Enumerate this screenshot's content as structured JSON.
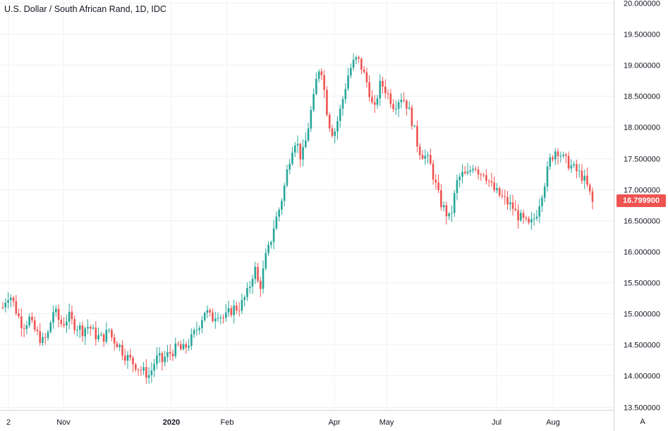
{
  "chart_data": {
    "type": "candlestick",
    "title": "U.S. Dollar / South African Rand, 1D, IDC",
    "ylim": [
      13.45,
      20.0
    ],
    "y_ticks": [
      "13.500000",
      "14.000000",
      "14.500000",
      "15.000000",
      "15.500000",
      "16.000000",
      "16.500000",
      "17.000000",
      "17.500000",
      "18.000000",
      "18.500000",
      "19.000000",
      "19.500000",
      "20.000000"
    ],
    "y_tick_values": [
      13.5,
      14,
      14.5,
      15,
      15.5,
      16,
      16.5,
      17,
      17.5,
      18,
      18.5,
      19,
      19.5,
      20
    ],
    "x_ticks": [
      {
        "label": "2",
        "bold": false
      },
      {
        "label": "Nov",
        "bold": false
      },
      {
        "label": "2020",
        "bold": true
      },
      {
        "label": "Feb",
        "bold": false
      },
      {
        "label": "Apr",
        "bold": false
      },
      {
        "label": "May",
        "bold": false
      },
      {
        "label": "Jul",
        "bold": false
      },
      {
        "label": "Aug",
        "bold": false
      }
    ],
    "close_path": [
      15.1,
      15.25,
      15.32,
      15.2,
      15.05,
      14.92,
      14.8,
      14.85,
      14.92,
      14.78,
      14.7,
      14.62,
      14.55,
      14.6,
      14.72,
      15.05,
      15.0,
      14.88,
      14.82,
      14.9,
      14.95,
      14.85,
      14.8,
      14.78,
      14.72,
      14.78,
      14.8,
      14.72,
      14.65,
      14.62,
      14.6,
      14.65,
      14.75,
      14.6,
      14.55,
      14.5,
      14.4,
      14.32,
      14.28,
      14.22,
      14.18,
      14.12,
      14.08,
      14.05,
      14.0,
      14.1,
      14.25,
      14.3,
      14.22,
      14.3,
      14.35,
      14.38,
      14.42,
      14.48,
      14.4,
      14.45,
      14.52,
      14.6,
      14.7,
      14.8,
      14.92,
      15.05,
      15.0,
      14.9,
      14.98,
      15.02,
      14.95,
      14.92,
      15.0,
      15.05,
      15.1,
      15.08,
      15.15,
      15.25,
      15.35,
      15.55,
      15.75,
      15.5,
      15.45,
      15.85,
      16.0,
      16.2,
      16.45,
      16.6,
      16.8,
      17.05,
      17.35,
      17.6,
      17.8,
      17.7,
      17.5,
      17.65,
      17.95,
      18.25,
      18.5,
      18.9,
      19.0,
      18.6,
      18.2,
      17.95,
      17.9,
      18.1,
      18.3,
      18.55,
      18.8,
      18.95,
      19.05,
      19.1,
      19.0,
      18.85,
      18.7,
      18.5,
      18.2,
      18.5,
      18.7,
      18.65,
      18.55,
      18.45,
      18.35,
      18.4,
      18.5,
      18.45,
      18.35,
      18.2,
      18.0,
      17.75,
      17.6,
      17.55,
      17.5,
      17.4,
      17.2,
      17.0,
      16.8,
      16.7,
      16.6,
      16.5,
      16.8,
      17.1,
      17.2,
      17.25,
      17.2,
      17.3,
      17.4,
      17.35,
      17.25,
      17.3,
      17.2,
      17.1,
      17.0,
      16.95,
      16.9,
      16.85,
      16.8,
      16.75,
      16.7,
      16.6,
      16.55,
      16.5,
      16.45,
      16.4,
      16.5,
      16.6,
      16.8,
      17.0,
      17.2,
      17.45,
      17.55,
      17.65,
      17.6,
      17.5,
      17.45,
      17.4,
      17.35,
      17.3,
      17.25,
      17.2,
      17.1,
      16.95,
      16.8
    ],
    "last_price": "16.799900",
    "up_color": "#26a69a",
    "down_color": "#ef5350"
  },
  "ui": {
    "auto_label": "A"
  }
}
